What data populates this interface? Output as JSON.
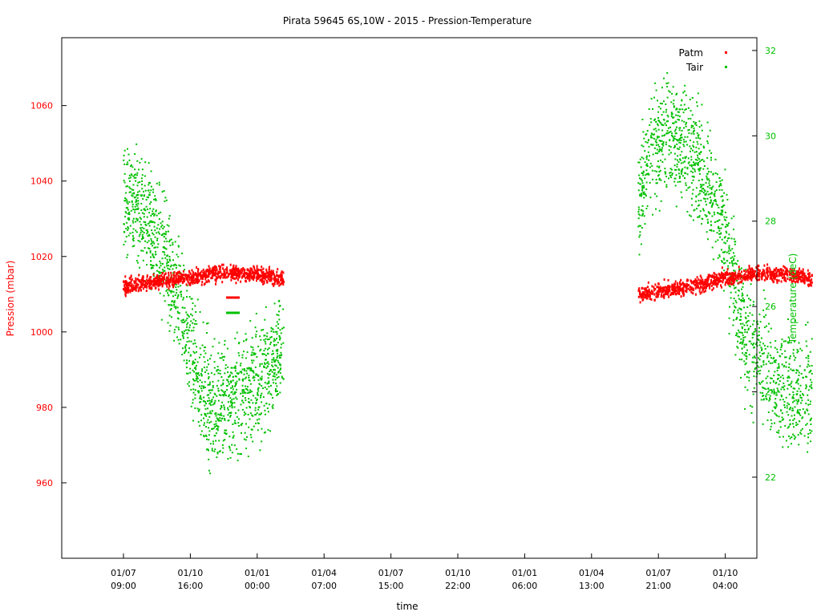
{
  "chart_data": {
    "type": "scatter",
    "title": "Pirata 59645 6S,10W - 2015 - Pression-Temperature",
    "xlabel": "time",
    "ylabel": "Pression (mbar)",
    "y2label": "Temperature (deC)",
    "ylim": [
      940,
      1078
    ],
    "y2lim": [
      20.1,
      32.3
    ],
    "yticks": [
      960,
      980,
      1000,
      1020,
      1040,
      1060
    ],
    "y2ticks": [
      22,
      24,
      26,
      28,
      30,
      32
    ],
    "xticks": [
      {
        "date": "01/07",
        "time": "09:00"
      },
      {
        "date": "01/10",
        "time": "16:00"
      },
      {
        "date": "01/01",
        "time": "00:00"
      },
      {
        "date": "01/04",
        "time": "07:00"
      },
      {
        "date": "01/07",
        "time": "15:00"
      },
      {
        "date": "01/10",
        "time": "22:00"
      },
      {
        "date": "01/01",
        "time": "06:00"
      },
      {
        "date": "01/04",
        "time": "13:00"
      },
      {
        "date": "01/07",
        "time": "21:00"
      },
      {
        "date": "01/10",
        "time": "04:00"
      }
    ],
    "legend": "top-right",
    "grid": false,
    "series": [
      {
        "name": "Patm",
        "axis": "left",
        "color": "#ff0000",
        "segments": [
          {
            "x": [
              0,
              0.2,
              0.4,
              0.6,
              0.8,
              1.0,
              1.2,
              1.4,
              1.6,
              1.8,
              2.0,
              2.2,
              2.4
            ],
            "y": [
              1012,
              1012.5,
              1013,
              1013.5,
              1014,
              1014.5,
              1015,
              1015.5,
              1016,
              1015.5,
              1015,
              1014.5,
              1014
            ]
          },
          {
            "x": [
              7.7,
              7.9,
              8.1,
              8.3,
              8.5,
              8.7,
              8.9,
              9.1,
              9.3,
              9.5,
              9.7,
              9.9,
              10.1,
              10.3
            ],
            "y": [
              1010,
              1010.5,
              1011,
              1011.5,
              1012,
              1013,
              1014,
              1014.5,
              1015,
              1015.5,
              1015,
              1015.5,
              1015,
              1014
            ]
          }
        ]
      },
      {
        "name": "Tair",
        "axis": "right",
        "color": "#00c000",
        "segments": [
          {
            "x": [
              0,
              0.2,
              0.4,
              0.6,
              0.8,
              1.0,
              1.2,
              1.4,
              1.6,
              1.8,
              2.0,
              2.2,
              2.4
            ],
            "y": [
              28.6,
              28.3,
              27.9,
              27.2,
              26.3,
              25.0,
              24.0,
              23.6,
              23.8,
              24.0,
              24.3,
              24.6,
              25.0
            ]
          },
          {
            "x": [
              7.7,
              7.9,
              8.1,
              8.3,
              8.5,
              8.7,
              8.9,
              9.1,
              9.3,
              9.5,
              9.7,
              9.9,
              10.1,
              10.3
            ],
            "y": [
              28.4,
              29.6,
              30.0,
              29.9,
              29.5,
              29.0,
              28.2,
              26.8,
              25.3,
              24.8,
              24.4,
              24.1,
              24.0,
              24.0
            ]
          }
        ]
      }
    ]
  }
}
